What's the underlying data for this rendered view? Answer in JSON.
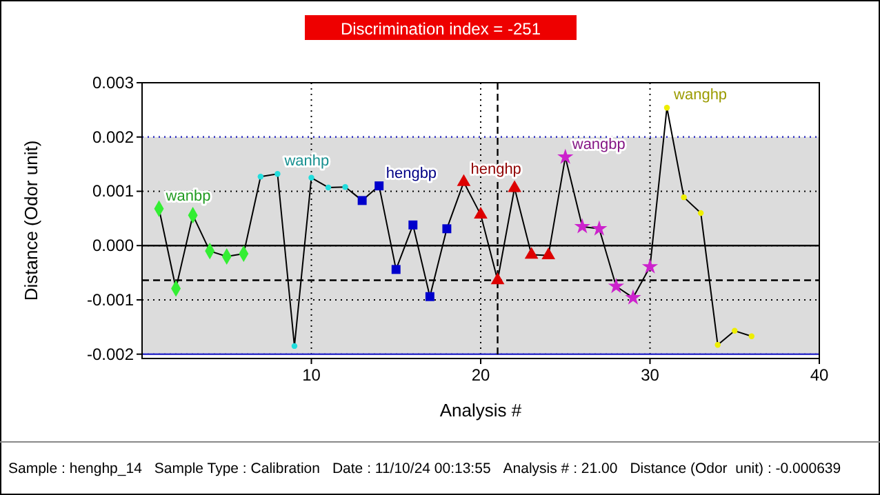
{
  "chart_data": {
    "type": "line",
    "title": "Discrimination index = -251",
    "xlabel": "Analysis #",
    "ylabel": "Distance (Odor  unit)",
    "xlim": [
      0,
      40
    ],
    "xticks": [
      10,
      20,
      30,
      40
    ],
    "ylim": [
      -0.00208,
      0.003
    ],
    "yticks": [
      {
        "value": -0.002,
        "label": "-0.002"
      },
      {
        "value": -0.001,
        "label": "-0.001"
      },
      {
        "value": 0,
        "label": "0.000"
      },
      {
        "value": 0.001,
        "label": "0.001"
      },
      {
        "value": 0.002,
        "label": "0.002"
      },
      {
        "value": 0.003,
        "label": "0.003"
      }
    ],
    "grid": true,
    "bands": [
      {
        "axis": "y",
        "from": -0.002,
        "to": 0.002,
        "color": "#dcdcdc"
      }
    ],
    "ref_lines": [
      {
        "axis": "y",
        "value": 0.002,
        "color": "#3333cc",
        "line_style": "dotted"
      },
      {
        "axis": "y",
        "value": -0.002,
        "color": "#3333cc",
        "line_style": "solid"
      },
      {
        "axis": "y",
        "value": 0,
        "color": "#000000",
        "line_style": "solid"
      },
      {
        "axis": "y",
        "value": -0.000639,
        "color": "#000000",
        "line_style": "dashed"
      },
      {
        "axis": "x",
        "value": 21,
        "color": "#000000",
        "line_style": "dashed"
      }
    ],
    "series": [
      {
        "type": "line",
        "color": "#000000",
        "marker": "none",
        "x": [
          1,
          2,
          3,
          4,
          5,
          6,
          7,
          8,
          9,
          10,
          11,
          12,
          13,
          14,
          15,
          16,
          17,
          18,
          19,
          20,
          21,
          22,
          23,
          24,
          25,
          26,
          27,
          28,
          29,
          30,
          31,
          32,
          33,
          34,
          35,
          36
        ],
        "values": [
          0.00068,
          -0.00079,
          0.00056,
          -0.0001,
          -0.0002,
          -0.00015,
          0.00127,
          0.00132,
          -0.00185,
          0.00125,
          0.00107,
          0.00108,
          0.00083,
          0.0011,
          -0.00044,
          0.00038,
          -0.00094,
          0.00031,
          0.00117,
          0.00057,
          -0.000639,
          0.00106,
          -0.00017,
          -0.00018,
          0.00163,
          0.00035,
          0.00031,
          -0.00075,
          -0.00096,
          -0.00039,
          0.00254,
          0.00089,
          0.0006,
          -0.00183,
          -0.00157,
          -0.00167
        ]
      },
      {
        "type": "scatter",
        "name": "wanbp",
        "color": "#33ee33",
        "marker": "diamond",
        "x": [
          1,
          2,
          3,
          4,
          5,
          6
        ],
        "values": [
          0.00068,
          -0.00079,
          0.00056,
          -0.0001,
          -0.0002,
          -0.00015
        ]
      },
      {
        "type": "scatter",
        "name": "wanhp",
        "color": "#22dddd",
        "marker": "circle",
        "x": [
          7,
          8,
          9,
          10,
          11,
          12
        ],
        "values": [
          0.00127,
          0.00132,
          -0.00185,
          0.00125,
          0.00107,
          0.00108
        ]
      },
      {
        "type": "scatter",
        "name": "hengbp",
        "color": "#0000cc",
        "marker": "square",
        "x": [
          13,
          14,
          15,
          16,
          17,
          18
        ],
        "values": [
          0.00083,
          0.0011,
          -0.00044,
          0.00038,
          -0.00094,
          0.00031
        ]
      },
      {
        "type": "scatter",
        "name": "henghp",
        "color": "#dd0000",
        "marker": "triangle",
        "x": [
          19,
          20,
          21,
          22,
          23,
          24
        ],
        "values": [
          0.00117,
          0.00057,
          -0.000639,
          0.00106,
          -0.00017,
          -0.00018
        ]
      },
      {
        "type": "scatter",
        "name": "wangbp",
        "color": "#cc22cc",
        "marker": "star",
        "x": [
          25,
          26,
          27,
          28,
          29,
          30
        ],
        "values": [
          0.00163,
          0.00035,
          0.00031,
          -0.00075,
          -0.00096,
          -0.00039
        ]
      },
      {
        "type": "scatter",
        "name": "wanghp",
        "color": "#eeee00",
        "marker": "circle",
        "x": [
          31,
          32,
          33,
          34,
          35,
          36
        ],
        "values": [
          0.00254,
          0.00089,
          0.0006,
          -0.00183,
          -0.00157,
          -0.00167
        ]
      }
    ],
    "annotations": [
      "Sample : henghp_14",
      "Sample Type : Calibration",
      "Date : 11/10/24 00:13:55",
      "Analysis # : 21.00",
      "Distance (Odor  unit) : -0.000639"
    ]
  }
}
